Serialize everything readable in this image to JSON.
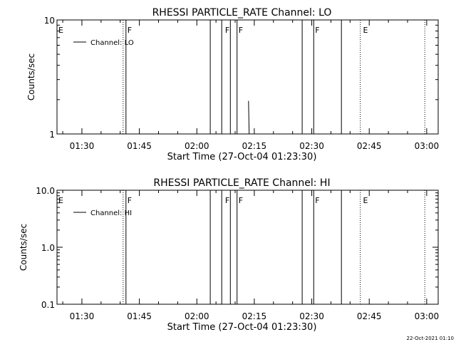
{
  "chart_data": [
    {
      "type": "line",
      "title": "RHESSI PARTICLE_RATE Channel: LO",
      "xlabel": "Start Time (27-Oct-04 01:23:30)",
      "ylabel": "Counts/sec",
      "y_scale": "log",
      "ylim": [
        1,
        10
      ],
      "xlim": [
        "01:23:30",
        "03:03:00"
      ],
      "x_ticks": [
        "01:30",
        "01:45",
        "02:00",
        "02:15",
        "02:30",
        "02:45",
        "03:00"
      ],
      "y_ticks": [
        "1",
        "10"
      ],
      "legend": {
        "label": "Channel: LO",
        "placement": "top-left"
      },
      "series": [
        {
          "name": "Channel: LO",
          "x": [
            "02:13:30",
            "02:13:40"
          ],
          "values": [
            1.95,
            1.0
          ]
        }
      ],
      "vlines_solid": [
        "01:41:30",
        "02:03:30",
        "02:06:30",
        "02:08:45",
        "02:10:30",
        "02:27:30",
        "02:30:30",
        "02:37:45"
      ],
      "vlines_dotted": [
        "01:40:45",
        "02:42:40",
        "02:59:30"
      ],
      "markers": [
        {
          "label": "E",
          "x": "01:23:30"
        },
        {
          "label": "F",
          "x": "01:41:30"
        },
        {
          "label": "F",
          "x": "02:07:00"
        },
        {
          "label": "F",
          "x": "02:10:30"
        },
        {
          "label": "F",
          "x": "02:30:30"
        },
        {
          "label": "E",
          "x": "02:43:00"
        }
      ]
    },
    {
      "type": "line",
      "title": "RHESSI PARTICLE_RATE Channel: HI",
      "xlabel": "Start Time (27-Oct-04 01:23:30)",
      "ylabel": "Counts/sec",
      "y_scale": "log",
      "ylim": [
        0.1,
        10
      ],
      "xlim": [
        "01:23:30",
        "03:03:00"
      ],
      "x_ticks": [
        "01:30",
        "01:45",
        "02:00",
        "02:15",
        "02:30",
        "02:45",
        "03:00"
      ],
      "y_ticks": [
        "0.1",
        "1.0",
        "10.0"
      ],
      "legend": {
        "label": "Channel: HI",
        "placement": "top-left"
      },
      "series": [
        {
          "name": "Channel: HI",
          "x": [],
          "values": []
        }
      ],
      "vlines_solid": [
        "01:41:30",
        "02:03:30",
        "02:06:30",
        "02:08:45",
        "02:10:30",
        "02:27:30",
        "02:30:30",
        "02:37:45"
      ],
      "vlines_dotted": [
        "01:40:45",
        "02:42:40",
        "02:59:30"
      ],
      "markers": [
        {
          "label": "E",
          "x": "01:23:30"
        },
        {
          "label": "F",
          "x": "01:41:30"
        },
        {
          "label": "F",
          "x": "02:07:00"
        },
        {
          "label": "F",
          "x": "02:10:30"
        },
        {
          "label": "F",
          "x": "02:30:30"
        },
        {
          "label": "E",
          "x": "02:43:00"
        }
      ]
    }
  ],
  "footer": {
    "timestamp": "22-Oct-2021 01:10"
  }
}
